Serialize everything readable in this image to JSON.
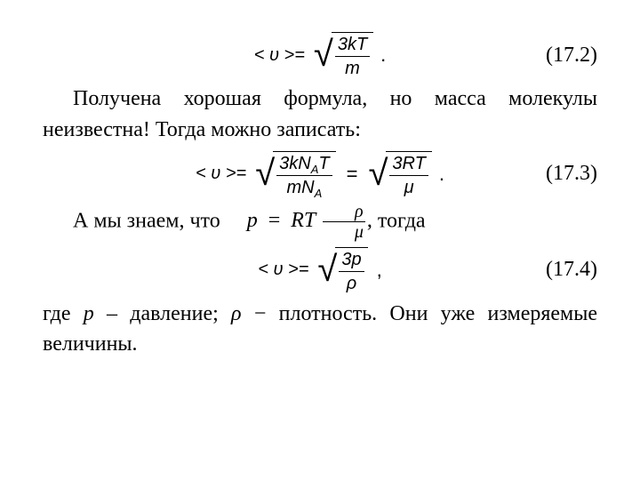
{
  "fontFamilies": {
    "body": "Times New Roman",
    "math": "Arial"
  },
  "colors": {
    "text": "#000000",
    "background": "#ffffff",
    "rule": "#000000"
  },
  "eq1": {
    "number": "(17.2)",
    "lhs": "< υ >=",
    "sqrt_num": "3kT",
    "sqrt_den": "m",
    "trail": "."
  },
  "para1": "Получена хорошая формула, но масса молекулы неизвестна! Тогда можно записать:",
  "eq2": {
    "number": "(17.3)",
    "lhs": "< υ >=",
    "left_num_a": "3kN",
    "left_num_sub": "A",
    "left_num_b": "T",
    "left_den_a": "mN",
    "left_den_sub": "A",
    "eq": "=",
    "right_num": "3RT",
    "right_den": "μ",
    "trail": "."
  },
  "para2_a": "А мы знаем, что",
  "inline": {
    "lhs": "p",
    "eq": "=",
    "r1": "RT",
    "frac_num": "ρ",
    "frac_den": "μ",
    "trail": ","
  },
  "para2_b": "тогда",
  "eq3": {
    "number": "(17.4)",
    "lhs": "< υ >=",
    "sqrt_num": "3p",
    "sqrt_den": "ρ",
    "trail": ","
  },
  "para3_a": "где ",
  "para3_p": "p",
  "para3_b": " – давление; ",
  "para3_rho": "ρ",
  "para3_c": " − плотность. Они уже измеряемые величины."
}
